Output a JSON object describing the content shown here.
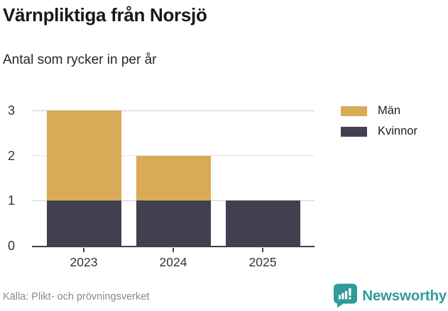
{
  "header": {
    "title": "Värnpliktiga från Norsjö",
    "subtitle": "Antal som rycker in per år"
  },
  "chart_data": {
    "type": "bar",
    "stacked": true,
    "categories": [
      "2023",
      "2024",
      "2025"
    ],
    "series": [
      {
        "name": "Män",
        "color": "#d9ab57",
        "values": [
          2,
          1,
          0
        ]
      },
      {
        "name": "Kvinnor",
        "color": "#424050",
        "values": [
          1,
          1,
          1
        ]
      }
    ],
    "totals": [
      3,
      2,
      1
    ],
    "xlabel": "",
    "ylabel": "",
    "ylim": [
      0,
      3
    ],
    "yticks": [
      0,
      1,
      2,
      3
    ],
    "grid": "horizontal",
    "legend_position": "top-right"
  },
  "footer": {
    "source": "Källa: Plikt- och prövningsverket",
    "brand": "Newsworthy"
  },
  "colors": {
    "men": "#d9ab57",
    "women": "#424050",
    "axis": "#424050",
    "grid": "#e2e2e2",
    "brand": "#2f9b9b",
    "title": "#191919",
    "muted": "#8a8a8a"
  }
}
